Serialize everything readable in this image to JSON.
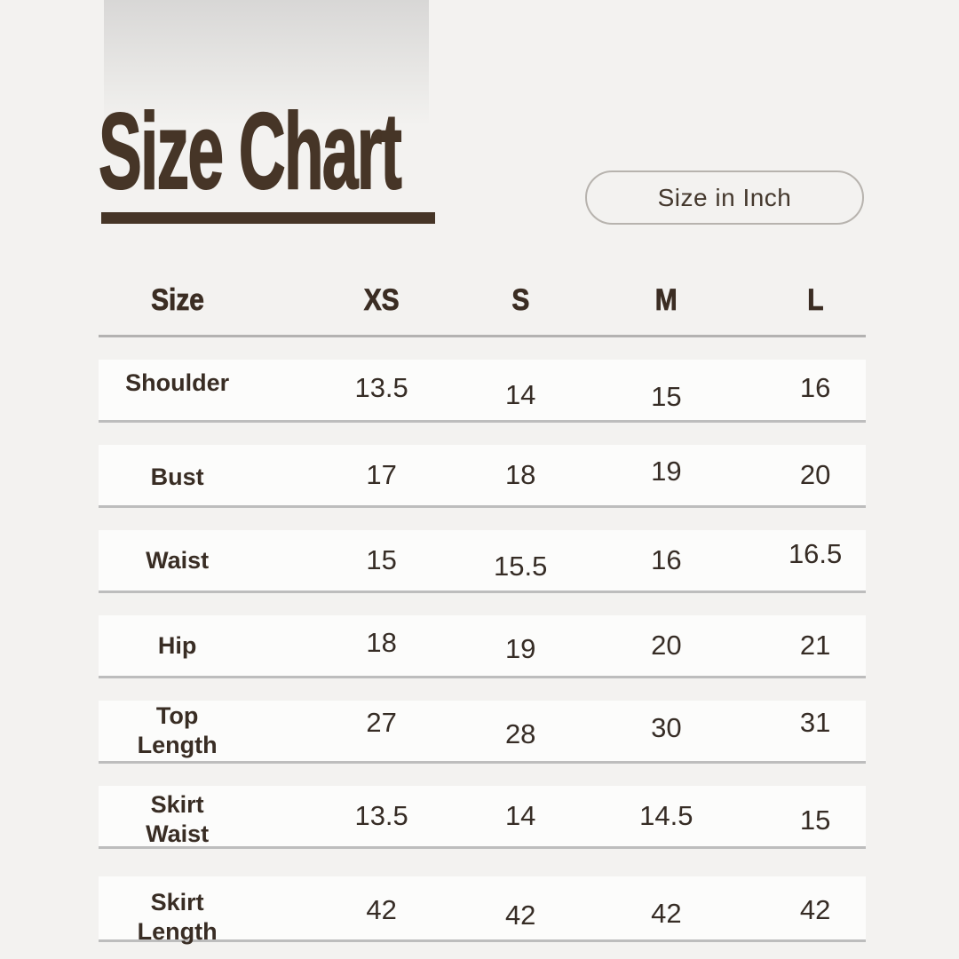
{
  "header": {
    "title": "Size Chart",
    "unit_pill": "Size in Inch"
  },
  "colors": {
    "accent_brown": "#463527",
    "page_background": "#f3f2f0",
    "row_background": "#fcfcfb",
    "separator_line": "#bdbdbd",
    "pill_border": "#b7b3ae"
  },
  "table": {
    "columns": [
      "Size",
      "XS",
      "S",
      "M",
      "L"
    ],
    "rows": [
      {
        "label": "Shoulder",
        "values": [
          "13.5",
          "14",
          "15",
          "16"
        ]
      },
      {
        "label": "Bust",
        "values": [
          "17",
          "18",
          "19",
          "20"
        ]
      },
      {
        "label": "Waist",
        "values": [
          "15",
          "15.5",
          "16",
          "16.5"
        ]
      },
      {
        "label": "Hip",
        "values": [
          "18",
          "19",
          "20",
          "21"
        ]
      },
      {
        "label": "Top Length",
        "values": [
          "27",
          "28",
          "30",
          "31"
        ]
      },
      {
        "label": "Skirt Waist",
        "values": [
          "13.5",
          "14",
          "14.5",
          "15"
        ]
      },
      {
        "label": "Skirt Length",
        "values": [
          "42",
          "42",
          "42",
          "42"
        ]
      }
    ]
  },
  "chart_data": {
    "type": "table",
    "title": "Size Chart",
    "unit": "Size in Inch",
    "columns": [
      "Size",
      "XS",
      "S",
      "M",
      "L"
    ],
    "rows": [
      [
        "Shoulder",
        "13.5",
        "14",
        "15",
        "16"
      ],
      [
        "Bust",
        "17",
        "18",
        "19",
        "20"
      ],
      [
        "Waist",
        "15",
        "15.5",
        "16",
        "16.5"
      ],
      [
        "Hip",
        "18",
        "19",
        "20",
        "21"
      ],
      [
        "Top Length",
        "27",
        "28",
        "30",
        "31"
      ],
      [
        "Skirt Waist",
        "13.5",
        "14",
        "14.5",
        "15"
      ],
      [
        "Skirt Length",
        "42",
        "42",
        "42",
        "42"
      ]
    ]
  }
}
